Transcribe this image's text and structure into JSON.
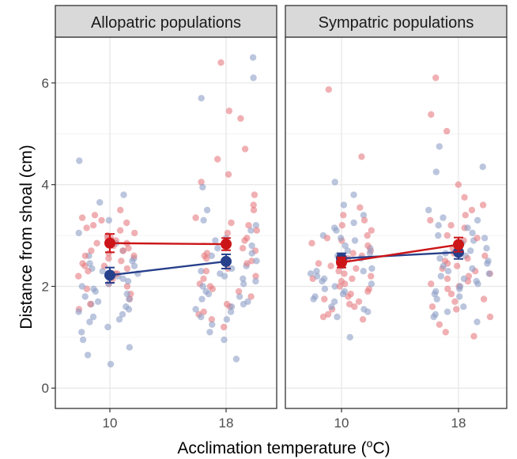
{
  "chart_data": {
    "type": "scatter",
    "xlabel_main": "Acclimation temperature (",
    "xlabel_sup": "o",
    "xlabel_end": "C)",
    "ylabel": "Distance from shoal (cm)",
    "ylim": [
      -0.4,
      6.9
    ],
    "yticks": [
      "0",
      "2",
      "4",
      "6"
    ],
    "xtick_labels": [
      "10",
      "18"
    ],
    "x_values": [
      10,
      18
    ],
    "grid": true,
    "legend": "none",
    "colors": {
      "red": "#cc1518",
      "blue": "#27408b",
      "red_points": "#e67c80",
      "blue_points": "#8e9ec6"
    },
    "panels": [
      {
        "strip": "Allopatric populations",
        "means": [
          {
            "series": "red",
            "x": [
              10,
              18
            ],
            "y": [
              2.85,
              2.83
            ],
            "se": [
              0.18,
              0.12
            ]
          },
          {
            "series": "blue",
            "x": [
              10,
              18
            ],
            "y": [
              2.22,
              2.49
            ],
            "se": [
              0.15,
              0.14
            ]
          }
        ],
        "points": {
          "red": {
            "10": [
              2.25,
              3.5,
              2.6,
              2.85,
              3.1,
              2.95,
              2.4,
              3.05,
              2.7,
              2.3,
              2.55,
              1.95,
              2.2,
              3.4,
              2.8,
              3.25,
              2.0,
              1.65,
              2.45,
              3.3,
              2.65,
              2.9,
              2.15,
              2.75,
              3.0,
              1.85,
              2.35,
              3.15,
              2.5,
              2.05,
              3.35,
              2.6,
              1.75,
              2.95,
              2.25,
              3.2,
              2.7,
              1.55,
              2.4,
              2.85
            ],
            "18": [
              5.45,
              6.4,
              4.7,
              5.3,
              4.5,
              4.05,
              3.8,
              3.5,
              3.35,
              3.2,
              3.1,
              2.95,
              2.85,
              2.7,
              2.6,
              2.45,
              2.3,
              2.2,
              2.05,
              1.95,
              1.8,
              1.65,
              1.5,
              1.35,
              1.2,
              3.6,
              2.9,
              2.5,
              2.75,
              1.9,
              2.15,
              3.05,
              1.6,
              2.35,
              2.65,
              1.45,
              3.25,
              2.0,
              4.2,
              2.55
            ]
          },
          "blue": {
            "10": [
              4.47,
              3.8,
              3.3,
              2.85,
              2.6,
              2.4,
              2.3,
              2.2,
              2.1,
              2.0,
              1.9,
              1.8,
              1.7,
              1.6,
              1.5,
              1.4,
              1.35,
              1.3,
              1.2,
              1.1,
              0.95,
              0.8,
              0.47,
              2.5,
              2.7,
              2.15,
              1.95,
              1.75,
              2.35,
              3.05,
              1.45,
              2.25,
              1.85,
              2.55,
              1.65,
              0.65,
              3.65,
              2.05,
              1.55,
              2.45
            ],
            "18": [
              6.5,
              6.1,
              5.7,
              3.95,
              3.5,
              3.3,
              3.1,
              2.95,
              2.8,
              2.65,
              2.5,
              2.4,
              2.3,
              2.2,
              2.1,
              2.0,
              1.9,
              1.8,
              1.7,
              1.6,
              1.5,
              1.4,
              1.25,
              1.1,
              0.95,
              0.57,
              2.45,
              2.75,
              1.85,
              2.05,
              1.55,
              2.6,
              2.25,
              1.75,
              3.2,
              2.15,
              1.35,
              2.9,
              1.65,
              2.35
            ]
          }
        }
      },
      {
        "strip": "Sympatric populations",
        "means": [
          {
            "series": "red",
            "x": [
              10,
              18
            ],
            "y": [
              2.47,
              2.82
            ],
            "se": [
              0.1,
              0.14
            ]
          },
          {
            "series": "blue",
            "x": [
              10,
              18
            ],
            "y": [
              2.55,
              2.67
            ],
            "se": [
              0.1,
              0.13
            ]
          }
        ],
        "points": {
          "red": {
            "10": [
              5.87,
              4.55,
              3.55,
              3.3,
              3.1,
              2.95,
              2.8,
              2.65,
              2.5,
              2.4,
              2.3,
              2.2,
              2.1,
              2.0,
              1.9,
              1.8,
              1.7,
              1.6,
              1.45,
              1.4,
              1.35,
              2.6,
              2.25,
              1.95,
              3.0,
              2.45,
              1.75,
              2.85,
              2.15,
              1.55,
              3.2,
              2.05,
              2.7,
              1.85,
              2.35,
              1.65,
              2.55,
              3.4,
              2.9,
              2.15
            ],
            "18": [
              6.1,
              5.38,
              5.05,
              4.0,
              3.75,
              3.5,
              3.3,
              3.15,
              3.0,
              2.9,
              2.75,
              2.6,
              2.5,
              2.4,
              2.3,
              2.2,
              2.1,
              2.0,
              1.85,
              1.7,
              1.55,
              1.4,
              1.25,
              1.1,
              1.02,
              2.45,
              2.85,
              2.05,
              3.4,
              1.95,
              2.65,
              2.25,
              3.6,
              1.6,
              2.35,
              2.95,
              1.75,
              3.2,
              2.55,
              2.15
            ]
          },
          "blue": {
            "10": [
              4.05,
              3.8,
              3.6,
              3.4,
              3.25,
              3.1,
              2.95,
              2.8,
              2.7,
              2.6,
              2.5,
              2.4,
              2.3,
              2.2,
              2.1,
              2.0,
              1.9,
              1.8,
              1.7,
              1.6,
              1.5,
              1.4,
              1.0,
              2.55,
              2.35,
              2.75,
              2.15,
              1.95,
              3.0,
              2.45,
              1.75,
              2.65,
              2.05,
              3.15,
              1.85,
              2.25,
              2.9,
              1.55,
              2.5,
              2.3
            ],
            "18": [
              4.75,
              4.35,
              4.25,
              3.5,
              3.35,
              3.2,
              3.05,
              2.95,
              2.85,
              2.75,
              2.65,
              2.55,
              2.45,
              2.35,
              2.25,
              2.15,
              2.05,
              1.95,
              1.85,
              1.75,
              1.6,
              1.5,
              1.4,
              1.3,
              2.6,
              2.9,
              2.2,
              3.15,
              2.4,
              1.9,
              2.7,
              2.0,
              3.3,
              1.8,
              2.5,
              1.45,
              2.3,
              3.0,
              2.1,
              2.8
            ]
          }
        }
      }
    ]
  }
}
